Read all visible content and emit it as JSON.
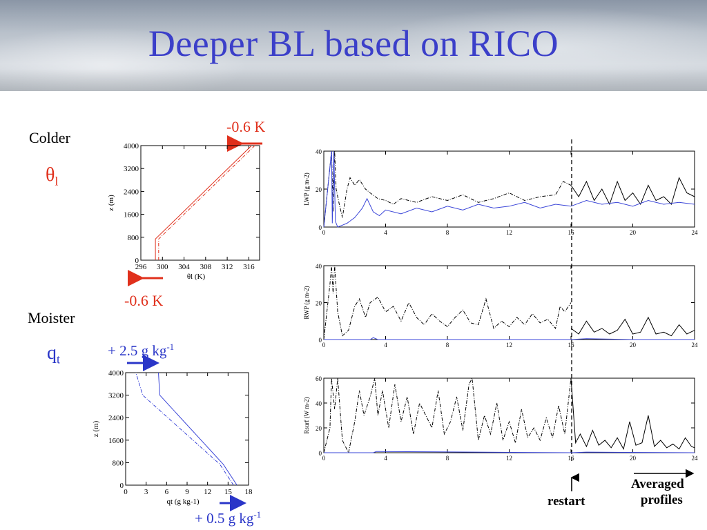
{
  "slide": {
    "title": "Deeper BL based on RICO",
    "colder_label": "Colder",
    "moister_label": "Moister",
    "theta_symbol": "θ",
    "theta_sub": "l",
    "q_symbol": "q",
    "q_sub": "t",
    "theta_top_change": "-0.6 K",
    "theta_bottom_change": "-0.6 K",
    "q_top_change": "+ 2.5 g kg",
    "q_top_exp": "-1",
    "q_bottom_change": "+ 0.5 g kg",
    "q_bottom_exp": "-1",
    "restart_label": "restart",
    "averaged_label_line1": "Averaged",
    "averaged_label_line2": "profiles",
    "colors": {
      "title": "#3b3fc9",
      "red": "#e0301c",
      "blue": "#2a36c8",
      "model_blue": "#3a45d8"
    }
  },
  "chart_data": [
    {
      "type": "line",
      "id": "theta_profile",
      "xlabel": "θl (K)",
      "ylabel": "z (m)",
      "xlim": [
        296,
        318
      ],
      "ylim": [
        0,
        4000
      ],
      "xticks": [
        296,
        300,
        304,
        308,
        312,
        316
      ],
      "yticks": [
        0,
        800,
        1600,
        2400,
        3200,
        4000
      ],
      "series": [
        {
          "style": "solid",
          "color": "#e0301c",
          "x": [
            298.7,
            298.7,
            316.5
          ],
          "y": [
            0,
            740,
            4000
          ]
        },
        {
          "style": "dashdot",
          "color": "#e0301c",
          "x": [
            299.3,
            299.3,
            317.1
          ],
          "y": [
            0,
            740,
            4000
          ]
        }
      ]
    },
    {
      "type": "line",
      "id": "qt_profile",
      "xlabel": "qt (g kg-1)",
      "ylabel": "z (m)",
      "xlim": [
        0,
        18
      ],
      "ylim": [
        0,
        4000
      ],
      "xticks": [
        0,
        3,
        6,
        9,
        12,
        15,
        18
      ],
      "yticks": [
        0,
        800,
        1600,
        2400,
        3200,
        4000
      ],
      "series": [
        {
          "style": "solid",
          "color": "#3a45d8",
          "x": [
            16.3,
            14.3,
            5.0,
            4.8
          ],
          "y": [
            0,
            740,
            3200,
            4000
          ]
        },
        {
          "style": "dashdot",
          "color": "#3a45d8",
          "x": [
            15.8,
            13.8,
            2.5,
            1.5
          ],
          "y": [
            0,
            740,
            3200,
            4000
          ]
        }
      ]
    },
    {
      "type": "line",
      "id": "lwp",
      "ylabel": "LWP (g m-2)",
      "xlim": [
        0,
        24
      ],
      "ylim": [
        0,
        40
      ],
      "xticks": [
        0,
        4,
        8,
        12,
        16,
        20,
        24
      ],
      "yticks": [
        0,
        20,
        40
      ],
      "series": [
        {
          "style": "dashdot",
          "color": "#000000",
          "t": [
            0,
            0.5,
            0.6,
            0.7,
            0.8,
            1.0,
            1.2,
            1.5,
            1.7,
            2.0,
            2.3,
            2.7,
            3.0,
            3.5,
            4.0,
            4.5,
            5.0,
            6.0,
            7.0,
            8.0,
            9.0,
            10.0,
            11.0,
            12.0,
            13.0,
            14.0,
            15.0,
            15.5,
            16.0
          ],
          "v": [
            0,
            40,
            8,
            40,
            20,
            12,
            5,
            20,
            26,
            22,
            25,
            20,
            18,
            15,
            14,
            12,
            15,
            13,
            16,
            14,
            17,
            13,
            15,
            18,
            14,
            16,
            17,
            24,
            22
          ]
        },
        {
          "style": "solid",
          "color": "#000000",
          "t": [
            16.0,
            16.5,
            17.0,
            17.5,
            18.0,
            18.5,
            19.0,
            19.5,
            20.0,
            20.5,
            21.0,
            21.5,
            22.0,
            22.5,
            23.0,
            23.5,
            24.0
          ],
          "v": [
            22,
            16,
            24,
            14,
            20,
            12,
            24,
            14,
            18,
            12,
            22,
            14,
            16,
            12,
            26,
            18,
            16
          ]
        },
        {
          "style": "solid",
          "color": "#3a45d8",
          "t": [
            0,
            0.5,
            0.55,
            0.65,
            0.75,
            0.9,
            1.2,
            1.5,
            2.0,
            2.5,
            2.8,
            3.2,
            3.6,
            4.0,
            5.0,
            6.0,
            7.0,
            8.0,
            9.0,
            10.0,
            11.0,
            12.0,
            13.0,
            14.0,
            15.0,
            16.0,
            17.0,
            18.0,
            19.0,
            20.0,
            21.0,
            22.0,
            23.0,
            24.0
          ],
          "v": [
            0,
            40,
            2,
            40,
            3,
            0,
            1,
            2,
            5,
            10,
            15,
            8,
            6,
            9,
            7,
            10,
            8,
            11,
            9,
            12,
            10,
            11,
            13,
            10,
            12,
            11,
            14,
            12,
            13,
            11,
            14,
            12,
            13,
            12
          ]
        }
      ]
    },
    {
      "type": "line",
      "id": "rwp",
      "ylabel": "RWP (g m-2)",
      "xlim": [
        0,
        24
      ],
      "ylim": [
        0,
        40
      ],
      "xticks": [
        0,
        4,
        8,
        12,
        16,
        20,
        24
      ],
      "yticks": [
        0,
        20,
        40
      ],
      "series": [
        {
          "style": "dashdot",
          "color": "#000000",
          "t": [
            0,
            0.4,
            0.5,
            0.6,
            0.7,
            0.9,
            1.2,
            1.6,
            2.0,
            2.3,
            2.7,
            3.0,
            3.5,
            4.0,
            4.5,
            5.0,
            5.5,
            6.0,
            6.5,
            7.0,
            7.5,
            8.0,
            8.5,
            9.0,
            9.5,
            10.0,
            10.5,
            11.0,
            11.5,
            12.0,
            12.5,
            13.0,
            13.5,
            14.0,
            14.5,
            15.0,
            15.3,
            15.6,
            16.0
          ],
          "v": [
            0,
            30,
            40,
            25,
            40,
            15,
            2,
            5,
            18,
            22,
            12,
            20,
            23,
            15,
            18,
            10,
            20,
            12,
            8,
            14,
            10,
            7,
            12,
            16,
            9,
            8,
            22,
            6,
            10,
            7,
            12,
            8,
            14,
            9,
            11,
            6,
            18,
            15,
            20
          ]
        },
        {
          "style": "solid",
          "color": "#000000",
          "t": [
            16.0,
            16.5,
            17.0,
            17.5,
            18.0,
            18.5,
            19.0,
            19.5,
            20.0,
            20.5,
            21.0,
            21.5,
            22.0,
            22.5,
            23.0,
            23.5,
            24.0
          ],
          "v": [
            6,
            3,
            10,
            4,
            6,
            3,
            5,
            11,
            3,
            4,
            12,
            3,
            4,
            2,
            8,
            3,
            5
          ]
        },
        {
          "style": "solid",
          "color": "#3a45d8",
          "t": [
            0,
            3.0,
            3.2,
            3.5,
            16.0,
            17.0,
            20.0,
            24.0
          ],
          "v": [
            0,
            0,
            1,
            0,
            0,
            0.5,
            0,
            0
          ]
        }
      ]
    },
    {
      "type": "line",
      "id": "rsurf",
      "ylabel": "Rsurf (W m-2)",
      "xlim": [
        0,
        24
      ],
      "ylim": [
        0,
        60
      ],
      "xticks": [
        0,
        4,
        8,
        12,
        16,
        20,
        24
      ],
      "yticks": [
        0,
        20,
        40,
        60
      ],
      "series": [
        {
          "style": "dashdot",
          "color": "#000000",
          "t": [
            0,
            0.4,
            0.5,
            0.7,
            0.9,
            1.2,
            1.6,
            2.0,
            2.3,
            2.6,
            3.0,
            3.3,
            3.5,
            3.8,
            4.2,
            4.6,
            5.0,
            5.4,
            5.8,
            6.2,
            6.6,
            7.0,
            7.4,
            7.8,
            8.2,
            8.6,
            9.0,
            9.4,
            9.6,
            10.0,
            10.4,
            10.8,
            11.2,
            11.6,
            12.0,
            12.4,
            12.8,
            13.2,
            13.6,
            14.0,
            14.4,
            14.8,
            15.2,
            15.6,
            16.0
          ],
          "v": [
            0,
            20,
            60,
            35,
            60,
            10,
            0,
            25,
            50,
            30,
            45,
            60,
            30,
            50,
            20,
            55,
            25,
            45,
            15,
            40,
            30,
            20,
            50,
            15,
            25,
            45,
            18,
            55,
            60,
            10,
            30,
            15,
            40,
            10,
            25,
            8,
            35,
            12,
            20,
            10,
            28,
            12,
            38,
            15,
            60
          ]
        },
        {
          "style": "solid",
          "color": "#000000",
          "t": [
            16.0,
            16.3,
            16.6,
            17.0,
            17.4,
            17.8,
            18.2,
            18.6,
            19.0,
            19.4,
            19.8,
            20.2,
            20.6,
            21.0,
            21.4,
            21.8,
            22.2,
            22.6,
            23.0,
            23.4,
            23.8,
            24.0
          ],
          "v": [
            60,
            8,
            15,
            5,
            18,
            6,
            10,
            4,
            12,
            3,
            25,
            6,
            8,
            30,
            5,
            10,
            4,
            7,
            3,
            12,
            5,
            4
          ]
        },
        {
          "style": "solid",
          "color": "#3a45d8",
          "t": [
            0,
            3.2,
            3.4,
            16.0,
            17.0,
            24.0
          ],
          "v": [
            0,
            0,
            1,
            0,
            0.5,
            0
          ]
        }
      ]
    }
  ]
}
